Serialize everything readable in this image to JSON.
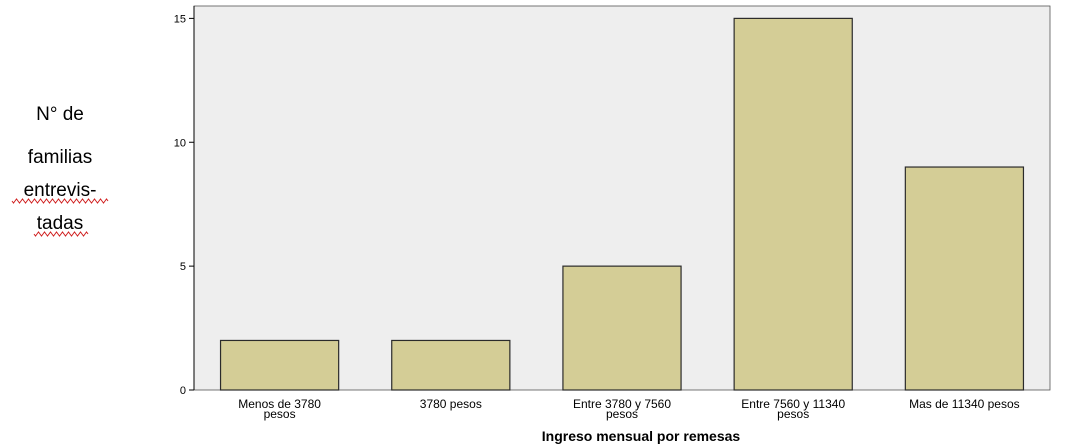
{
  "chart_data": {
    "type": "bar",
    "categories": [
      [
        "Menos de 3780",
        "pesos"
      ],
      [
        "3780 pesos"
      ],
      [
        "Entre 3780 y 7560",
        "pesos"
      ],
      [
        "Entre 7560 y 11340",
        "pesos"
      ],
      [
        "Mas de 11340 pesos"
      ]
    ],
    "values": [
      2,
      2,
      5,
      15,
      9
    ],
    "xlabel": "Ingreso mensual por remesas",
    "ylabel_lines": [
      "N° de",
      "familias",
      "entrevis-",
      "tadas"
    ],
    "ylim": [
      0,
      15.5
    ],
    "yticks": [
      0,
      5,
      10,
      15
    ],
    "grid": false,
    "colors": {
      "bar_fill": "#d4cd96",
      "bar_stroke": "#2b2b2b",
      "plot_background": "#eeeeee",
      "spellcheck_underline": "#d02020"
    }
  }
}
